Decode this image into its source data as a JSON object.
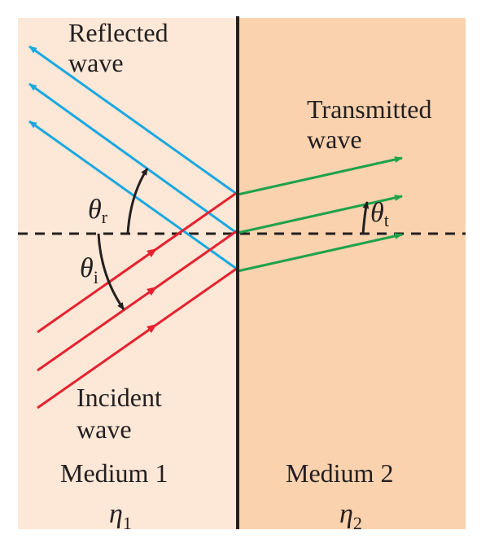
{
  "colors": {
    "medium1_fill": "#fde7d6",
    "medium2_fill": "#fad2ae",
    "reflected": "#1aa8e0",
    "incident": "#e52230",
    "transmitted": "#1fa24a",
    "boundary": "#231f20"
  },
  "labels": {
    "reflected_line1": "Reflected",
    "reflected_line2": "wave",
    "transmitted_line1": "Transmitted",
    "transmitted_line2": "wave",
    "incident_line1": "Incident",
    "incident_line2": "wave",
    "medium1": "Medium 1",
    "medium2": "Medium 2",
    "theta_r": "θ",
    "theta_r_sub": "r",
    "theta_i": "θ",
    "theta_i_sub": "i",
    "theta_t": "θ",
    "theta_t_sub": "t",
    "eta1": "η",
    "eta1_sub": "1",
    "eta2": "η",
    "eta2_sub": "2"
  }
}
